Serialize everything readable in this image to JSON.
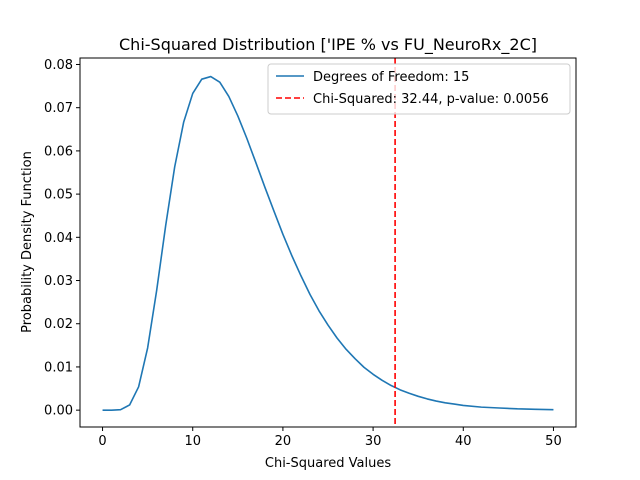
{
  "chart_data": {
    "type": "line",
    "title": "Chi-Squared Distribution ['IPE % vs FU_NeuroRx_2C]",
    "xlabel": "Chi-Squared Values",
    "ylabel": "Probability Density Function",
    "xlim": [
      -2.5,
      52.5
    ],
    "ylim": [
      -0.0039,
      0.0815
    ],
    "xticks": [
      0,
      10,
      20,
      30,
      40,
      50
    ],
    "xtick_labels": [
      "0",
      "10",
      "20",
      "30",
      "40",
      "50"
    ],
    "yticks": [
      0.0,
      0.01,
      0.02,
      0.03,
      0.04,
      0.05,
      0.06,
      0.07,
      0.08
    ],
    "ytick_labels": [
      "0.00",
      "0.01",
      "0.02",
      "0.03",
      "0.04",
      "0.05",
      "0.06",
      "0.07",
      "0.08"
    ],
    "grid": false,
    "legend_position": "top-right",
    "series": [
      {
        "name": "Degrees of Freedom: 15",
        "kind": "curve",
        "color": "#1f77b4",
        "x": [
          0,
          1,
          2,
          3,
          4,
          5,
          6,
          7,
          8,
          9,
          10,
          11,
          12,
          13,
          14,
          15,
          16,
          17,
          18,
          19,
          20,
          21,
          22,
          23,
          24,
          25,
          26,
          27,
          28,
          29,
          30,
          31,
          32,
          33,
          34,
          35,
          36,
          37,
          38,
          39,
          40,
          42,
          44,
          46,
          48,
          50
        ],
        "y": [
          0,
          0,
          0.0001,
          0.0012,
          0.0054,
          0.0144,
          0.0277,
          0.0427,
          0.0563,
          0.0667,
          0.0733,
          0.0766,
          0.0772,
          0.0759,
          0.0726,
          0.0681,
          0.0629,
          0.0573,
          0.0516,
          0.0461,
          0.0407,
          0.0357,
          0.0311,
          0.0268,
          0.023,
          0.0197,
          0.0167,
          0.0141,
          0.0119,
          0.0099,
          0.0083,
          0.0069,
          0.0057,
          0.0047,
          0.0039,
          0.0032,
          0.0026,
          0.0021,
          0.0017,
          0.0014,
          0.0011,
          0.0007,
          0.0005,
          0.0003,
          0.0002,
          0.0001
        ]
      },
      {
        "name": "Chi-Squared: 32.44, p-value: 0.0056",
        "kind": "vline",
        "color": "#ff0000",
        "x": 32.44
      }
    ]
  }
}
